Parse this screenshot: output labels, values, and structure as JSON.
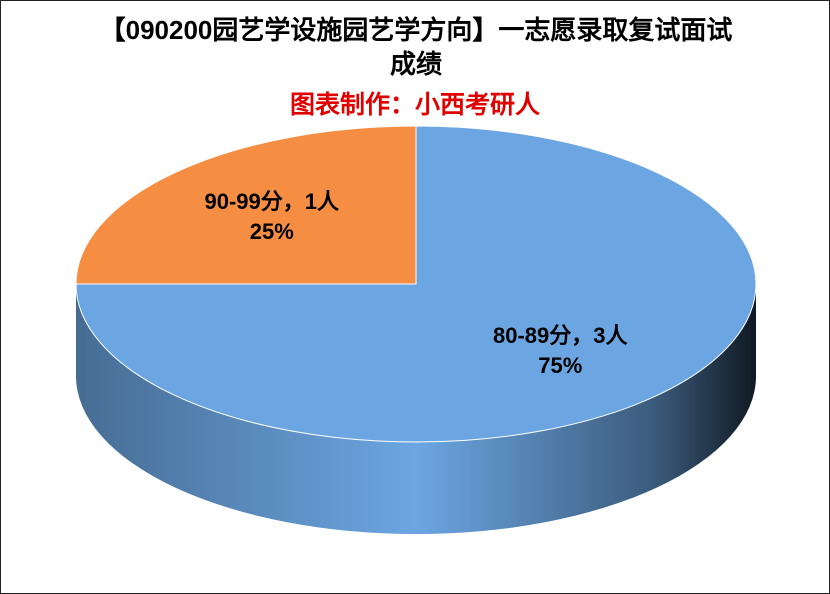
{
  "chart_data": {
    "type": "pie3d",
    "title": "【090200园艺学设施园艺学方向】一志愿录取复试面试成绩",
    "subtitle": "图表制作：小西考研人",
    "categories": [
      "80-89分，3人",
      "90-99分，1人"
    ],
    "values": [
      75,
      25
    ],
    "value_labels": [
      "75%",
      "25%"
    ],
    "colors": [
      "#6ca6e2",
      "#f58d42"
    ]
  }
}
